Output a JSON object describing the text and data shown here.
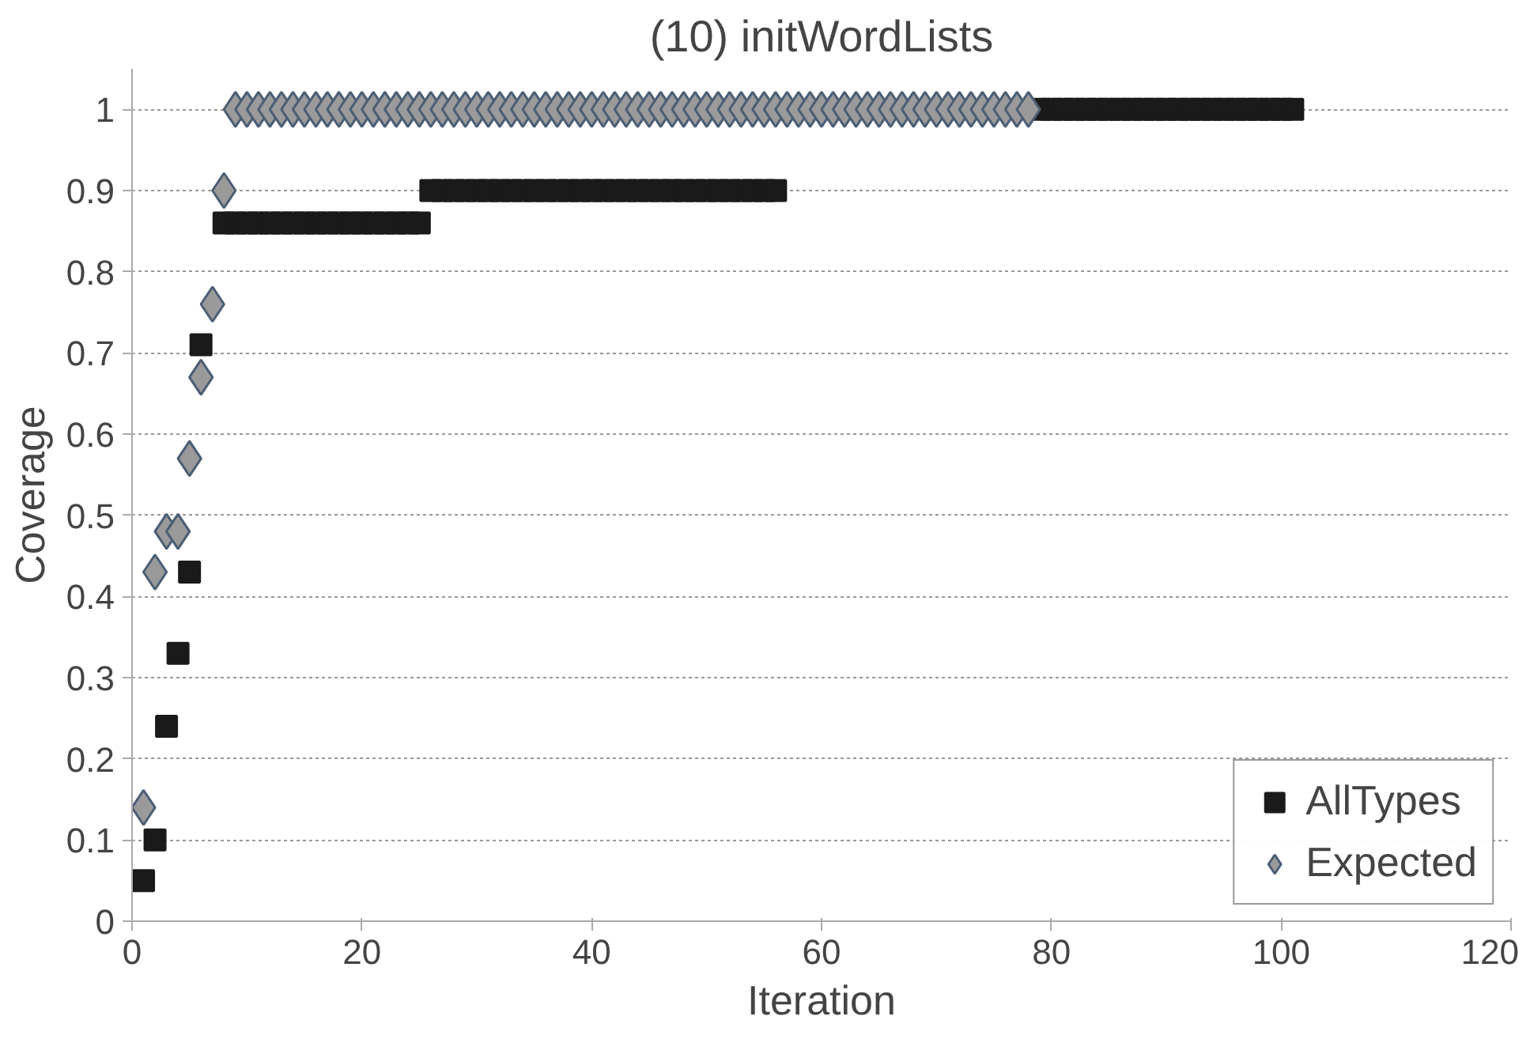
{
  "chart_data": {
    "type": "scatter",
    "title": "(10) initWordLists",
    "xlabel": "Iteration",
    "ylabel": "Coverage",
    "xlim": [
      0,
      120
    ],
    "xticks": [
      0,
      20,
      40,
      60,
      80,
      100,
      120
    ],
    "ylim": [
      0,
      1.05
    ],
    "yticks": [
      0,
      0.1,
      0.2,
      0.3,
      0.4,
      0.5,
      0.6,
      0.7,
      0.8,
      0.9,
      1
    ],
    "grid": "y",
    "legend": "bottom right",
    "series": [
      {
        "name": "AllTypes",
        "color": "#1a1a1a",
        "marker": "square",
        "x": [
          1,
          2,
          3,
          4,
          5,
          6,
          8,
          9,
          10,
          11,
          12,
          13,
          14,
          15,
          16,
          17,
          18,
          19,
          20,
          21,
          22,
          23,
          24,
          25,
          26,
          27,
          28,
          29,
          30,
          31,
          32,
          33,
          34,
          35,
          36,
          37,
          38,
          39,
          40,
          41,
          42,
          43,
          44,
          45,
          46,
          47,
          48,
          49,
          50,
          51,
          52,
          53,
          54,
          55,
          56,
          79,
          80,
          81,
          82,
          83,
          84,
          85,
          86,
          87,
          88,
          89,
          90,
          91,
          92,
          93,
          94,
          95,
          96,
          97,
          98,
          99,
          100,
          101
        ],
        "values": [
          0.05,
          0.1,
          0.24,
          0.33,
          0.43,
          0.71,
          0.86,
          0.86,
          0.86,
          0.86,
          0.86,
          0.86,
          0.86,
          0.86,
          0.86,
          0.86,
          0.86,
          0.86,
          0.86,
          0.86,
          0.86,
          0.86,
          0.86,
          0.86,
          0.9,
          0.9,
          0.9,
          0.9,
          0.9,
          0.9,
          0.9,
          0.9,
          0.9,
          0.9,
          0.9,
          0.9,
          0.9,
          0.9,
          0.9,
          0.9,
          0.9,
          0.9,
          0.9,
          0.9,
          0.9,
          0.9,
          0.9,
          0.9,
          0.9,
          0.9,
          0.9,
          0.9,
          0.9,
          0.9,
          0.9,
          1,
          1,
          1,
          1,
          1,
          1,
          1,
          1,
          1,
          1,
          1,
          1,
          1,
          1,
          1,
          1,
          1,
          1,
          1,
          1,
          1,
          1,
          1
        ]
      },
      {
        "name": "Expected",
        "color": "#9a9a9a",
        "marker": "diamond",
        "x": [
          1,
          2,
          3,
          4,
          5,
          6,
          7,
          8,
          9,
          10,
          11,
          12,
          13,
          14,
          15,
          16,
          17,
          18,
          19,
          20,
          21,
          22,
          23,
          24,
          25,
          26,
          27,
          28,
          29,
          30,
          31,
          32,
          33,
          34,
          35,
          36,
          37,
          38,
          39,
          40,
          41,
          42,
          43,
          44,
          45,
          46,
          47,
          48,
          49,
          50,
          51,
          52,
          53,
          54,
          55,
          56,
          57,
          58,
          59,
          60,
          61,
          62,
          63,
          64,
          65,
          66,
          67,
          68,
          69,
          70,
          71,
          72,
          73,
          74,
          75,
          76,
          77,
          78
        ],
        "values": [
          0.14,
          0.43,
          0.48,
          0.48,
          0.57,
          0.67,
          0.76,
          0.9,
          1,
          1,
          1,
          1,
          1,
          1,
          1,
          1,
          1,
          1,
          1,
          1,
          1,
          1,
          1,
          1,
          1,
          1,
          1,
          1,
          1,
          1,
          1,
          1,
          1,
          1,
          1,
          1,
          1,
          1,
          1,
          1,
          1,
          1,
          1,
          1,
          1,
          1,
          1,
          1,
          1,
          1,
          1,
          1,
          1,
          1,
          1,
          1,
          1,
          1,
          1,
          1,
          1,
          1,
          1,
          1,
          1,
          1,
          1,
          1,
          1,
          1,
          1,
          1,
          1,
          1,
          1,
          1,
          1,
          1
        ]
      }
    ]
  }
}
